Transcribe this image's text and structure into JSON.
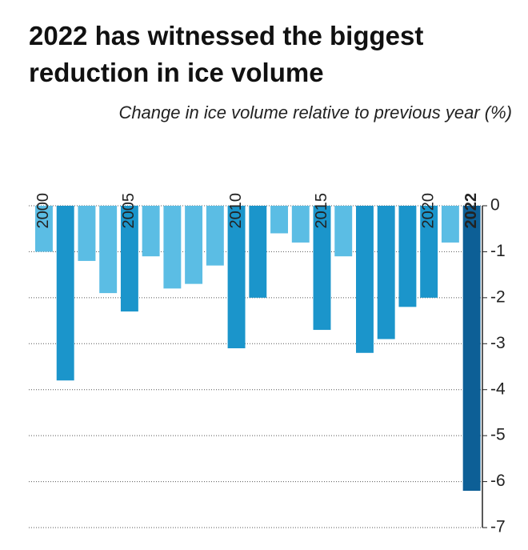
{
  "chart_data": {
    "type": "bar",
    "title": "2022 has witnessed the biggest reduction in ice volume",
    "subtitle": "Change in ice volume relative to previous year (%)",
    "categories": [
      "2000",
      null,
      null,
      null,
      "2005",
      null,
      null,
      null,
      null,
      "2010",
      null,
      null,
      null,
      "2015",
      null,
      null,
      null,
      null,
      "2020",
      null,
      "2022"
    ],
    "values": [
      -1.0,
      -3.8,
      -1.2,
      -1.9,
      -2.3,
      -1.1,
      -1.8,
      -1.7,
      -1.3,
      -3.1,
      -2.0,
      -0.6,
      -0.8,
      -2.7,
      -1.1,
      -3.2,
      -2.9,
      -2.2,
      -2.0,
      -0.8,
      -6.2
    ],
    "colors": [
      "#5bbde4",
      "#1b95cb",
      "#5bbde4",
      "#5bbde4",
      "#1b95cb",
      "#5bbde4",
      "#5bbde4",
      "#5bbde4",
      "#5bbde4",
      "#1b95cb",
      "#1b95cb",
      "#5bbde4",
      "#5bbde4",
      "#1b95cb",
      "#5bbde4",
      "#1b95cb",
      "#1b95cb",
      "#1b95cb",
      "#1b95cb",
      "#5bbde4",
      "#0d5f96"
    ],
    "ylim": [
      -7,
      0
    ],
    "yticks": [
      0,
      -1,
      -2,
      -3,
      -4,
      -5,
      -6,
      -7
    ],
    "grid": true,
    "y_axis_side": "right"
  }
}
